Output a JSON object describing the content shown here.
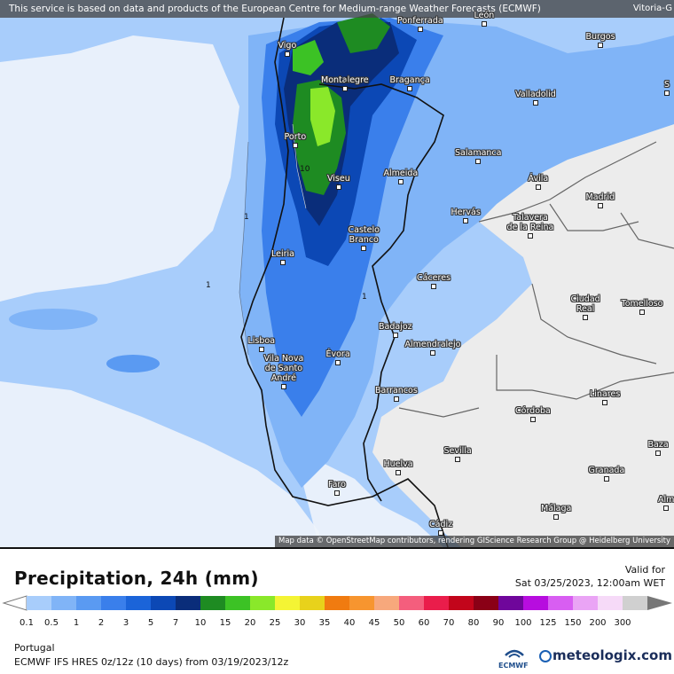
{
  "header": {
    "disclaimer": "This service is based on data and products of the European Centre for Medium-range Weather Forecasts (ECMWF)",
    "corner_city": "Vitoria-G"
  },
  "map": {
    "attribution": "Map data © OpenStreetMap contributors, rendering GIScience Research Group @ Heidelberg University",
    "cities": [
      {
        "name": "Vigo",
        "lines": [
          "Vigo"
        ]
      },
      {
        "name": "Ponferrada",
        "lines": [
          "Ponferrada"
        ]
      },
      {
        "name": "León",
        "lines": [
          "León"
        ]
      },
      {
        "name": "Burgos",
        "lines": [
          "Burgos"
        ]
      },
      {
        "name": "Montalegre",
        "lines": [
          "Montalegre"
        ]
      },
      {
        "name": "Bragança",
        "lines": [
          "Bragança"
        ]
      },
      {
        "name": "Valladolid",
        "lines": [
          "Valladolid"
        ]
      },
      {
        "name": "Porto",
        "lines": [
          "Porto"
        ]
      },
      {
        "name": "Salamanca",
        "lines": [
          "Salamanca"
        ]
      },
      {
        "name": "Almeida",
        "lines": [
          "Almeida"
        ]
      },
      {
        "name": "Viseu",
        "lines": [
          "Viseu"
        ]
      },
      {
        "name": "Ávila",
        "lines": [
          "Ávila"
        ]
      },
      {
        "name": "Madrid",
        "lines": [
          "Madrid"
        ]
      },
      {
        "name": "Hervás",
        "lines": [
          "Hervás"
        ]
      },
      {
        "name": "Talavera de la Reina",
        "lines": [
          "Talavera",
          "de la Reina"
        ]
      },
      {
        "name": "Castelo Branco",
        "lines": [
          "Castelo",
          "Branco"
        ]
      },
      {
        "name": "Leiria",
        "lines": [
          "Leiria"
        ]
      },
      {
        "name": "Cáceres",
        "lines": [
          "Cáceres"
        ]
      },
      {
        "name": "Ciudad Real",
        "lines": [
          "Ciudad",
          "Real"
        ]
      },
      {
        "name": "Tomelloso",
        "lines": [
          "Tomelloso"
        ]
      },
      {
        "name": "Badajoz",
        "lines": [
          "Badajoz"
        ]
      },
      {
        "name": "Almendralejo",
        "lines": [
          "Almendralejo"
        ]
      },
      {
        "name": "Lisboa",
        "lines": [
          "Lisboa"
        ]
      },
      {
        "name": "Évora",
        "lines": [
          "Évora"
        ]
      },
      {
        "name": "Vila Nova de Santo André",
        "lines": [
          "Vila Nova",
          "de Santo",
          "André"
        ]
      },
      {
        "name": "Barrancos",
        "lines": [
          "Barrancos"
        ]
      },
      {
        "name": "Linares",
        "lines": [
          "Linares"
        ]
      },
      {
        "name": "Córdoba",
        "lines": [
          "Córdoba"
        ]
      },
      {
        "name": "Sevilla",
        "lines": [
          "Sevilla"
        ]
      },
      {
        "name": "Huelva",
        "lines": [
          "Huelva"
        ]
      },
      {
        "name": "Granada",
        "lines": [
          "Granada"
        ]
      },
      {
        "name": "Baza",
        "lines": [
          "Baza"
        ]
      },
      {
        "name": "Faro",
        "lines": [
          "Faro"
        ]
      },
      {
        "name": "Málaga",
        "lines": [
          "Málaga"
        ]
      },
      {
        "name": "Alm",
        "lines": [
          "Alm"
        ]
      },
      {
        "name": "Cádiz",
        "lines": [
          "Cádiz"
        ]
      },
      {
        "name": "S",
        "lines": [
          "S"
        ]
      }
    ],
    "contour_labels": [
      "1",
      "1",
      "1",
      "10",
      "1"
    ]
  },
  "legend": {
    "title": "Precipitation, 24h (mm)",
    "valid_label": "Valid for",
    "valid_date": "Sat 03/25/2023, 12:00am WET",
    "bins": [
      {
        "label": "0.1",
        "color": "#a8cdfb"
      },
      {
        "label": "0.5",
        "color": "#80b4f7"
      },
      {
        "label": "1",
        "color": "#5a9af2"
      },
      {
        "label": "2",
        "color": "#3a7feb"
      },
      {
        "label": "3",
        "color": "#1b64d9"
      },
      {
        "label": "5",
        "color": "#0c48b5"
      },
      {
        "label": "7",
        "color": "#0a2d7a"
      },
      {
        "label": "10",
        "color": "#1e8b22"
      },
      {
        "label": "15",
        "color": "#3cc225"
      },
      {
        "label": "20",
        "color": "#8ae82a"
      },
      {
        "label": "25",
        "color": "#f4f434"
      },
      {
        "label": "30",
        "color": "#e8d21b"
      },
      {
        "label": "35",
        "color": "#f07b10"
      },
      {
        "label": "40",
        "color": "#f7952f"
      },
      {
        "label": "45",
        "color": "#f7a87c"
      },
      {
        "label": "50",
        "color": "#f45e7d"
      },
      {
        "label": "60",
        "color": "#ea1d4b"
      },
      {
        "label": "70",
        "color": "#c2051b"
      },
      {
        "label": "80",
        "color": "#8a0016"
      },
      {
        "label": "90",
        "color": "#6f069b"
      },
      {
        "label": "100",
        "color": "#b70ddf"
      },
      {
        "label": "125",
        "color": "#d85ef2"
      },
      {
        "label": "150",
        "color": "#eaa4f5"
      },
      {
        "label": "200",
        "color": "#f6daf8"
      },
      {
        "label": "300",
        "color": "#d0d0d0"
      }
    ]
  },
  "footer": {
    "region": "Portugal",
    "model": "ECMWF IFS HRES 0z/12z (10 days) from  03/19/2023/12z",
    "ecmwf_logo": "ECMWF",
    "brand": "meteologix.com"
  }
}
